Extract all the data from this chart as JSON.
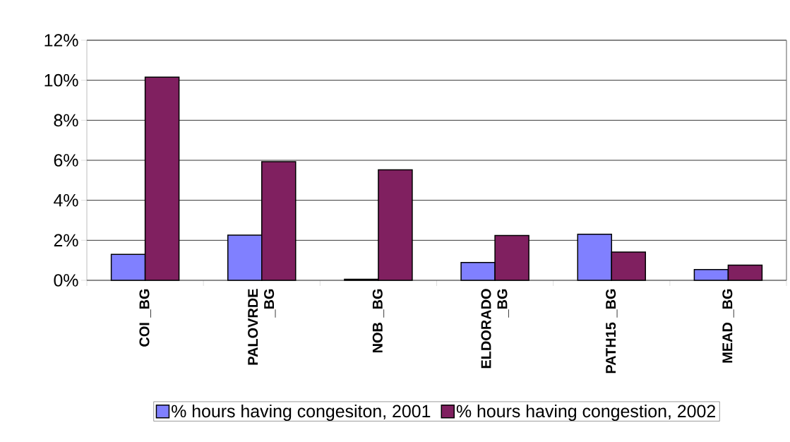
{
  "chart_data": {
    "type": "bar",
    "categories": [
      "COI _BG",
      "PALOVRDE _BG",
      "NOB _BG",
      "ELDORADO _BG",
      "PATH15 _BG",
      "MEAD _BG"
    ],
    "series": [
      {
        "name": "% hours having congesiton, 2001",
        "color": "#8080ff",
        "values": [
          1.3,
          2.26,
          0.05,
          0.89,
          2.3,
          0.54
        ]
      },
      {
        "name": "% hours having congestion, 2002",
        "color": "#802060",
        "values": [
          10.16,
          5.93,
          5.52,
          2.24,
          1.41,
          0.76
        ]
      }
    ],
    "ylim": [
      0,
      12
    ],
    "yticks": [
      {
        "value": 0,
        "label": "0%"
      },
      {
        "value": 2,
        "label": "2%"
      },
      {
        "value": 4,
        "label": "4%"
      },
      {
        "value": 6,
        "label": "6%"
      },
      {
        "value": 8,
        "label": "8%"
      },
      {
        "value": 10,
        "label": "10%"
      },
      {
        "value": 12,
        "label": "12%"
      }
    ],
    "grid": "y",
    "legend": "bottom"
  }
}
